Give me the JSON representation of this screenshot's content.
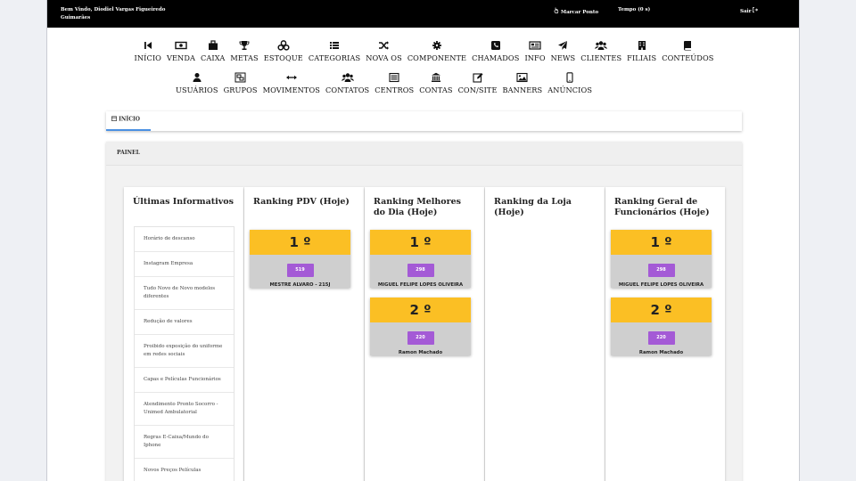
{
  "topbar": {
    "welcome": "Bem Vindo, Diodiel Vargas Figueiredo Guimarães",
    "clock_in": "Marcar Ponto",
    "time": "Tempo (0 s)",
    "logout": "Sair"
  },
  "nav": {
    "row1": [
      {
        "label": "INÍCIO",
        "icon": "first-page-icon"
      },
      {
        "label": "VENDA",
        "icon": "money-icon"
      },
      {
        "label": "CAIXA",
        "icon": "briefcase-icon"
      },
      {
        "label": "METAS",
        "icon": "trophy-icon"
      },
      {
        "label": "ESTOQUE",
        "icon": "cubes-icon"
      },
      {
        "label": "CATEGORIAS",
        "icon": "list-icon"
      },
      {
        "label": "NOVA OS",
        "icon": "shuffle-icon"
      },
      {
        "label": "COMPONENTE",
        "icon": "gear-icon"
      },
      {
        "label": "CHAMADOS",
        "icon": "phone-icon"
      },
      {
        "label": "INFO",
        "icon": "newspaper-icon"
      },
      {
        "label": "NEWS",
        "icon": "paper-plane-icon"
      },
      {
        "label": "CLIENTES",
        "icon": "users-icon"
      },
      {
        "label": "FILIAIS",
        "icon": "building-icon"
      },
      {
        "label": "CONTEÚDOS",
        "icon": "book-icon"
      }
    ],
    "row2": [
      {
        "label": "USUÁRIOS",
        "icon": "user-icon"
      },
      {
        "label": "GRUPOS",
        "icon": "object-group-icon"
      },
      {
        "label": "MOVIMENTOS",
        "icon": "arrows-h-icon"
      },
      {
        "label": "CONTATOS",
        "icon": "users-group-icon"
      },
      {
        "label": "CENTROS",
        "icon": "list-alt-icon"
      },
      {
        "label": "CONTAS",
        "icon": "bank-icon"
      },
      {
        "label": "CON/SITE",
        "icon": "pencil-square-icon"
      },
      {
        "label": "BANNERS",
        "icon": "image-icon"
      },
      {
        "label": "ANÚNCIOS",
        "icon": "mobile-icon"
      }
    ]
  },
  "breadcrumb": {
    "tab": "INÍCIO"
  },
  "panel": {
    "title": "PAINEL"
  },
  "informativos": {
    "title": "Últimas Informativos",
    "items": [
      "Horário de descanso",
      "Instagram Empresa",
      "Tudo Novo de Novo modelos diferentes",
      "Redução de valores",
      "Proibido exposição do uniforme em redes sociais",
      "Capas e Películas Funcionários",
      "Atendimento Pronto Socorro - Unimed Ambulatorial",
      "Regras E-Caixa/Mundo do Iphone",
      "Novos Preços Películas"
    ]
  },
  "rank_pdv": {
    "title": "Ranking PDV (Hoje)",
    "entries": [
      {
        "pos": "1 º",
        "value": "519",
        "name": "MESTRE ALVARO - 215J"
      }
    ]
  },
  "rank_best": {
    "title": "Ranking Melhores do Dia (Hoje)",
    "entries": [
      {
        "pos": "1 º",
        "value": "298",
        "name": "MIGUEL FELIPE LOPES OLIVEIRA"
      },
      {
        "pos": "2 º",
        "value": "220",
        "name": "Ramon Machado"
      }
    ]
  },
  "rank_store": {
    "title": "Ranking da Loja (Hoje)",
    "entries": []
  },
  "rank_general": {
    "title": "Ranking Geral de Funcionários (Hoje)",
    "entries": [
      {
        "pos": "1 º",
        "value": "298",
        "name": "MIGUEL FELIPE LOPES OLIVEIRA"
      },
      {
        "pos": "2 º",
        "value": "220",
        "name": "Ramon Machado"
      }
    ]
  }
}
